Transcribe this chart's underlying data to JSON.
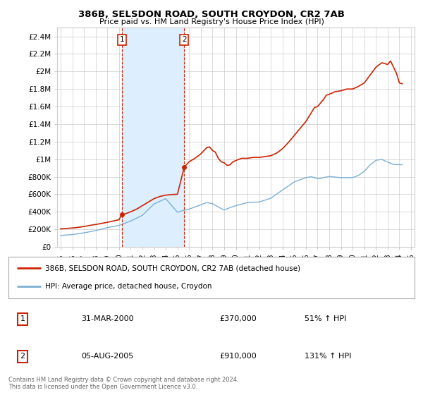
{
  "title": "386B, SELSDON ROAD, SOUTH CROYDON, CR2 7AB",
  "subtitle": "Price paid vs. HM Land Registry's House Price Index (HPI)",
  "hpi_color": "#7bafd4",
  "price_color": "#cc2200",
  "marker_color": "#cc2200",
  "bg_color": "#ffffff",
  "grid_color": "#cccccc",
  "annotation_box_color": "#cc2200",
  "shade_color": "#ddeeff",
  "ylim": [
    0,
    2500000
  ],
  "yticks": [
    0,
    200000,
    400000,
    600000,
    800000,
    1000000,
    1200000,
    1400000,
    1600000,
    1800000,
    2000000,
    2200000,
    2400000
  ],
  "ytick_labels": [
    "£0",
    "£200K",
    "£400K",
    "£600K",
    "£800K",
    "£1M",
    "£1.2M",
    "£1.4M",
    "£1.6M",
    "£1.8M",
    "£2M",
    "£2.2M",
    "£2.4M"
  ],
  "sale_points": [
    {
      "year": 2000.25,
      "price": 370000,
      "label": "1"
    },
    {
      "year": 2005.58,
      "price": 910000,
      "label": "2"
    }
  ],
  "legend_label_price": "386B, SELSDON ROAD, SOUTH CROYDON, CR2 7AB (detached house)",
  "legend_label_hpi": "HPI: Average price, detached house, Croydon",
  "table_rows": [
    {
      "num": "1",
      "date": "31-MAR-2000",
      "price": "£370,000",
      "change": "51% ↑ HPI"
    },
    {
      "num": "2",
      "date": "05-AUG-2005",
      "price": "£910,000",
      "change": "131% ↑ HPI"
    }
  ],
  "footer": "Contains HM Land Registry data © Crown copyright and database right 2024.\nThis data is licensed under the Open Government Licence v3.0.",
  "xlim": [
    1994.7,
    2025.3
  ],
  "xticks": [
    1995,
    1996,
    1997,
    1998,
    1999,
    2000,
    2001,
    2002,
    2003,
    2004,
    2005,
    2006,
    2007,
    2008,
    2009,
    2010,
    2011,
    2012,
    2013,
    2014,
    2015,
    2016,
    2017,
    2018,
    2019,
    2020,
    2021,
    2022,
    2023,
    2024,
    2025
  ]
}
